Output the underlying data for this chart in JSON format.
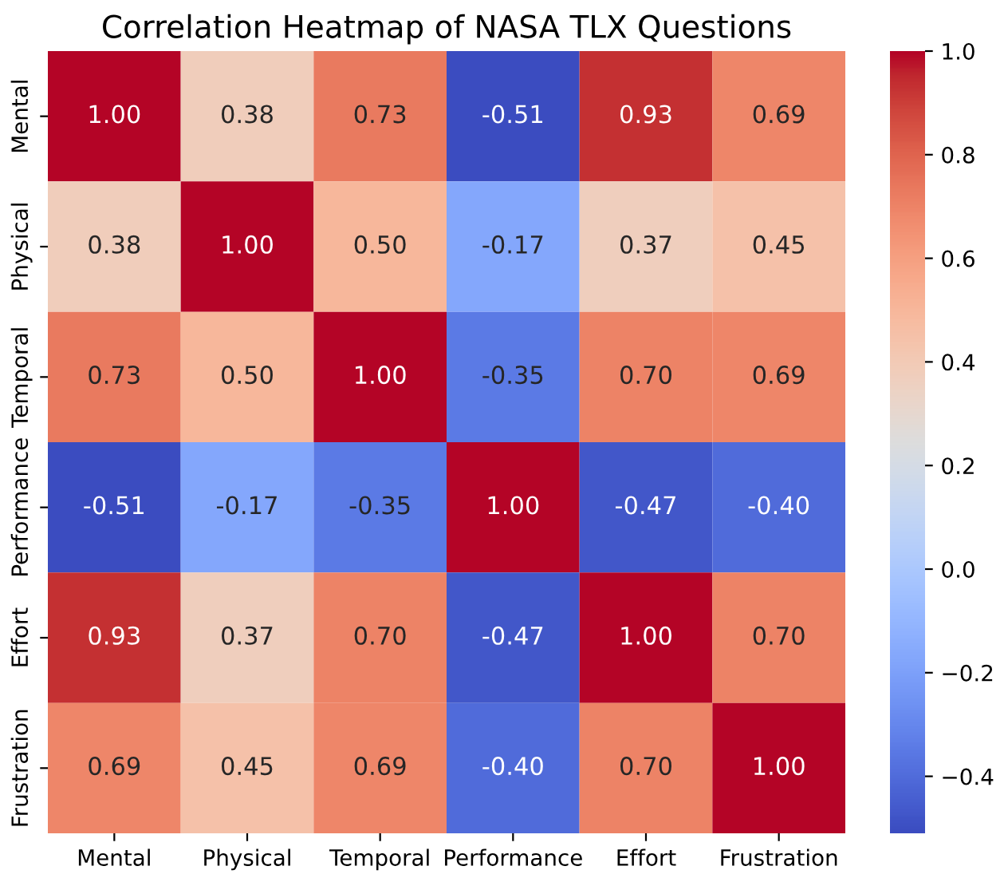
{
  "chart_data": {
    "type": "heatmap",
    "title": "Correlation Heatmap of NASA TLX Questions",
    "categories": [
      "Mental",
      "Physical",
      "Temporal",
      "Performance",
      "Effort",
      "Frustration"
    ],
    "y_categories": [
      "Mental",
      "Physical",
      "Temporal",
      "Performance",
      "Effort",
      "Frustration"
    ],
    "cells": [
      [
        1.0,
        0.38,
        0.73,
        -0.51,
        0.93,
        0.69
      ],
      [
        0.38,
        1.0,
        0.5,
        -0.17,
        0.37,
        0.45
      ],
      [
        0.73,
        0.5,
        1.0,
        -0.35,
        0.7,
        0.69
      ],
      [
        -0.51,
        -0.17,
        -0.35,
        1.0,
        -0.47,
        -0.4
      ],
      [
        0.93,
        0.37,
        0.7,
        -0.47,
        1.0,
        0.7
      ],
      [
        0.69,
        0.45,
        0.69,
        -0.4,
        0.7,
        1.0
      ]
    ],
    "cell_labels": [
      [
        "1.00",
        "0.38",
        "0.73",
        "-0.51",
        "0.93",
        "0.69"
      ],
      [
        "0.38",
        "1.00",
        "0.50",
        "-0.17",
        "0.37",
        "0.45"
      ],
      [
        "0.73",
        "0.50",
        "1.00",
        "-0.35",
        "0.70",
        "0.69"
      ],
      [
        "-0.51",
        "-0.17",
        "-0.35",
        "1.00",
        "-0.47",
        "-0.40"
      ],
      [
        "0.93",
        "0.37",
        "0.70",
        "-0.47",
        "1.00",
        "0.70"
      ],
      [
        "0.69",
        "0.45",
        "0.69",
        "-0.40",
        "0.70",
        "1.00"
      ]
    ],
    "clim": [
      -0.51,
      1.0
    ],
    "cticks": [
      {
        "value": -0.4,
        "label": "−0.4"
      },
      {
        "value": -0.2,
        "label": "−0.2"
      },
      {
        "value": 0,
        "label": "0.0"
      },
      0.2,
      0.4,
      0.6,
      0.8,
      {
        "value": 1,
        "label": "1.0"
      }
    ]
  }
}
